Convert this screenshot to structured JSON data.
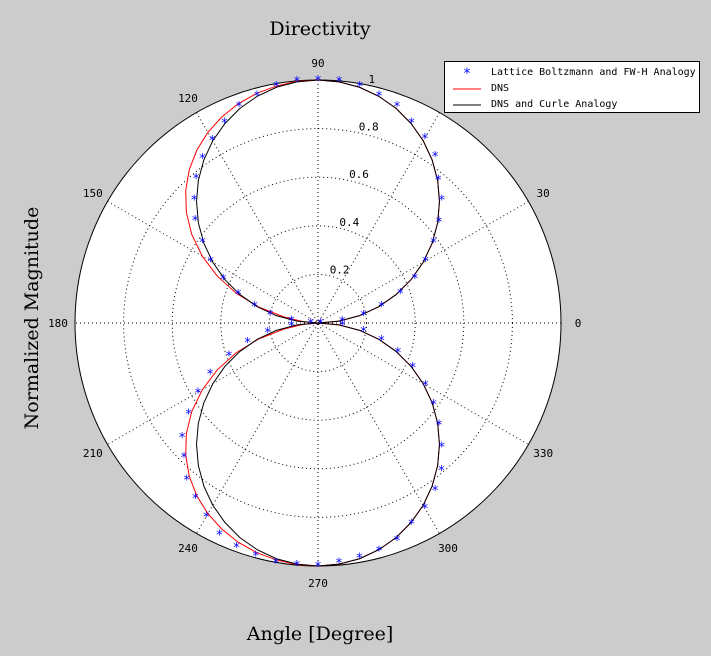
{
  "chart_data": {
    "type": "polar",
    "title": "Directivity",
    "xlabel": "Angle [Degree]",
    "ylabel": "Normalized Magnitude",
    "rlim": [
      0,
      1
    ],
    "radial_ticks": [
      "0.2",
      "0.4",
      "0.6",
      "0.8",
      "1"
    ],
    "radial_tick_values": [
      0.2,
      0.4,
      0.6,
      0.8,
      1.0
    ],
    "angle_ticks": [
      "0",
      "30",
      "60",
      "90",
      "120",
      "150",
      "180",
      "210",
      "240",
      "270",
      "300",
      "330"
    ],
    "angle_tick_values": [
      0,
      30,
      60,
      90,
      120,
      150,
      180,
      210,
      240,
      270,
      300,
      330
    ],
    "visible_angle_labels": [
      "0",
      "30",
      "90",
      "120",
      "150",
      "180",
      "210",
      "240",
      "270",
      "300",
      "330"
    ],
    "grid": true,
    "legend_position": "top-right",
    "series": [
      {
        "name": "Lattice Boltzmann and FW-H Analogy",
        "style": "markers",
        "marker": "*",
        "color": "#0000ff",
        "theta": [
          0,
          5,
          10,
          15,
          20,
          25,
          30,
          35,
          40,
          45,
          50,
          55,
          60,
          65,
          70,
          75,
          80,
          85,
          90,
          95,
          100,
          105,
          110,
          115,
          120,
          125,
          130,
          135,
          140,
          145,
          150,
          155,
          160,
          165,
          170,
          175,
          180,
          185,
          190,
          195,
          200,
          205,
          210,
          215,
          220,
          225,
          230,
          235,
          240,
          245,
          250,
          255,
          260,
          265,
          270,
          275,
          280,
          285,
          290,
          295,
          300,
          305,
          310,
          315,
          320,
          325,
          330,
          335,
          340,
          345,
          350,
          355
        ],
        "r": [
          0.01,
          0.1,
          0.19,
          0.27,
          0.36,
          0.44,
          0.51,
          0.58,
          0.65,
          0.72,
          0.77,
          0.84,
          0.88,
          0.91,
          0.95,
          0.97,
          0.99,
          1.0,
          1.0,
          1.0,
          0.99,
          0.97,
          0.95,
          0.91,
          0.87,
          0.83,
          0.78,
          0.72,
          0.66,
          0.58,
          0.51,
          0.43,
          0.35,
          0.27,
          0.2,
          0.11,
          0.03,
          0.11,
          0.21,
          0.3,
          0.39,
          0.49,
          0.57,
          0.65,
          0.73,
          0.78,
          0.84,
          0.88,
          0.92,
          0.96,
          0.98,
          0.99,
          1.0,
          1.0,
          1.0,
          0.99,
          0.98,
          0.97,
          0.95,
          0.91,
          0.88,
          0.84,
          0.79,
          0.72,
          0.65,
          0.58,
          0.51,
          0.43,
          0.35,
          0.27,
          0.19,
          0.1
        ]
      },
      {
        "name": "DNS",
        "style": "line",
        "color": "#ff0000",
        "theta": [
          0,
          5,
          10,
          15,
          20,
          25,
          30,
          35,
          40,
          45,
          50,
          55,
          60,
          65,
          70,
          75,
          80,
          85,
          90,
          95,
          100,
          105,
          110,
          115,
          120,
          125,
          130,
          135,
          140,
          145,
          150,
          155,
          160,
          165,
          170,
          175,
          180,
          185,
          190,
          195,
          200,
          205,
          210,
          215,
          220,
          225,
          230,
          235,
          240,
          245,
          250,
          255,
          260,
          265,
          270,
          275,
          280,
          285,
          290,
          295,
          300,
          305,
          310,
          315,
          320,
          325,
          330,
          335,
          340,
          345,
          350,
          355,
          360
        ],
        "r": [
          0.0,
          0.087,
          0.174,
          0.259,
          0.342,
          0.423,
          0.5,
          0.574,
          0.643,
          0.707,
          0.766,
          0.819,
          0.866,
          0.906,
          0.94,
          0.966,
          0.985,
          0.996,
          1.0,
          0.998,
          0.99,
          0.978,
          0.96,
          0.936,
          0.906,
          0.869,
          0.824,
          0.77,
          0.707,
          0.634,
          0.55,
          0.458,
          0.358,
          0.252,
          0.142,
          0.06,
          0.0,
          0.06,
          0.142,
          0.252,
          0.358,
          0.458,
          0.55,
          0.634,
          0.707,
          0.77,
          0.824,
          0.869,
          0.906,
          0.936,
          0.96,
          0.978,
          0.99,
          0.998,
          1.0,
          0.996,
          0.985,
          0.966,
          0.94,
          0.906,
          0.866,
          0.819,
          0.766,
          0.707,
          0.643,
          0.574,
          0.5,
          0.423,
          0.342,
          0.259,
          0.174,
          0.087,
          0.0
        ]
      },
      {
        "name": "DNS and Curle Analogy",
        "style": "line",
        "color": "#000000",
        "theta": [
          0,
          5,
          10,
          15,
          20,
          25,
          30,
          35,
          40,
          45,
          50,
          55,
          60,
          65,
          70,
          75,
          80,
          85,
          90,
          95,
          100,
          105,
          110,
          115,
          120,
          125,
          130,
          135,
          140,
          145,
          150,
          155,
          160,
          165,
          170,
          175,
          180,
          185,
          190,
          195,
          200,
          205,
          210,
          215,
          220,
          225,
          230,
          235,
          240,
          245,
          250,
          255,
          260,
          265,
          270,
          275,
          280,
          285,
          290,
          295,
          300,
          305,
          310,
          315,
          320,
          325,
          330,
          335,
          340,
          345,
          350,
          355,
          360
        ],
        "r": [
          0.0,
          0.087,
          0.174,
          0.259,
          0.342,
          0.423,
          0.5,
          0.574,
          0.643,
          0.707,
          0.766,
          0.819,
          0.866,
          0.906,
          0.94,
          0.966,
          0.985,
          0.996,
          1.0,
          0.996,
          0.985,
          0.966,
          0.94,
          0.906,
          0.866,
          0.819,
          0.766,
          0.707,
          0.643,
          0.574,
          0.5,
          0.423,
          0.342,
          0.259,
          0.174,
          0.087,
          0.0,
          0.087,
          0.174,
          0.259,
          0.342,
          0.423,
          0.5,
          0.574,
          0.643,
          0.707,
          0.766,
          0.819,
          0.866,
          0.906,
          0.94,
          0.966,
          0.985,
          0.996,
          1.0,
          0.996,
          0.985,
          0.966,
          0.94,
          0.906,
          0.866,
          0.819,
          0.766,
          0.707,
          0.643,
          0.574,
          0.5,
          0.423,
          0.342,
          0.259,
          0.174,
          0.087,
          0.0
        ]
      }
    ]
  }
}
